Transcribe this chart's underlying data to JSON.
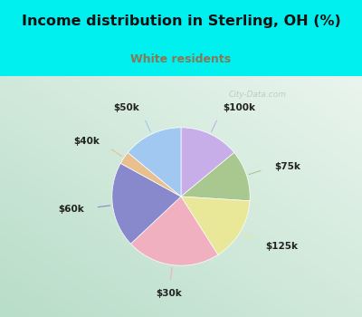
{
  "title": "Income distribution in Sterling, OH (%)",
  "subtitle": "White residents",
  "title_color": "#111111",
  "subtitle_color": "#887755",
  "bg_color_top": "#00f0f0",
  "labels": [
    "$100k",
    "$75k",
    "$125k",
    "$30k",
    "$60k",
    "$40k",
    "$50k"
  ],
  "sizes": [
    14,
    12,
    15,
    22,
    20,
    3,
    14
  ],
  "colors": [
    "#c8aee8",
    "#a8c890",
    "#e8e898",
    "#f0b0c0",
    "#8888cc",
    "#e8c090",
    "#a0c8f0"
  ],
  "watermark": "City-Data.com",
  "chart_bg_left": "#b8ddc8",
  "chart_bg_right": "#e8f4ec"
}
